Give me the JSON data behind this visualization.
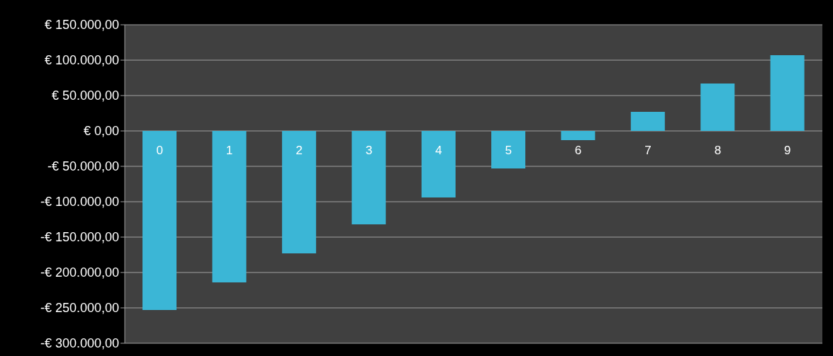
{
  "chart_data": {
    "type": "bar",
    "categories": [
      "0",
      "1",
      "2",
      "3",
      "4",
      "5",
      "6",
      "7",
      "8",
      "9"
    ],
    "values": [
      -253000,
      -214000,
      -173000,
      -132000,
      -94000,
      -53000,
      -13000,
      27000,
      67000,
      107000
    ],
    "color": "#3bb6d6",
    "ylim": [
      -300000,
      150000
    ],
    "yticks": [
      {
        "value": -300000,
        "label": "-€ 300.000,00"
      },
      {
        "value": -250000,
        "label": "-€ 250.000,00"
      },
      {
        "value": -200000,
        "label": "-€ 200.000,00"
      },
      {
        "value": -150000,
        "label": "-€ 150.000,00"
      },
      {
        "value": -100000,
        "label": "-€ 100.000,00"
      },
      {
        "value": -50000,
        "label": "-€ 50.000,00"
      },
      {
        "value": 0,
        "label": "€ 0,00"
      },
      {
        "value": 50000,
        "label": "€ 50.000,00"
      },
      {
        "value": 100000,
        "label": "€ 100.000,00"
      },
      {
        "value": 150000,
        "label": "€ 150.000,00"
      }
    ],
    "grid": "y"
  }
}
